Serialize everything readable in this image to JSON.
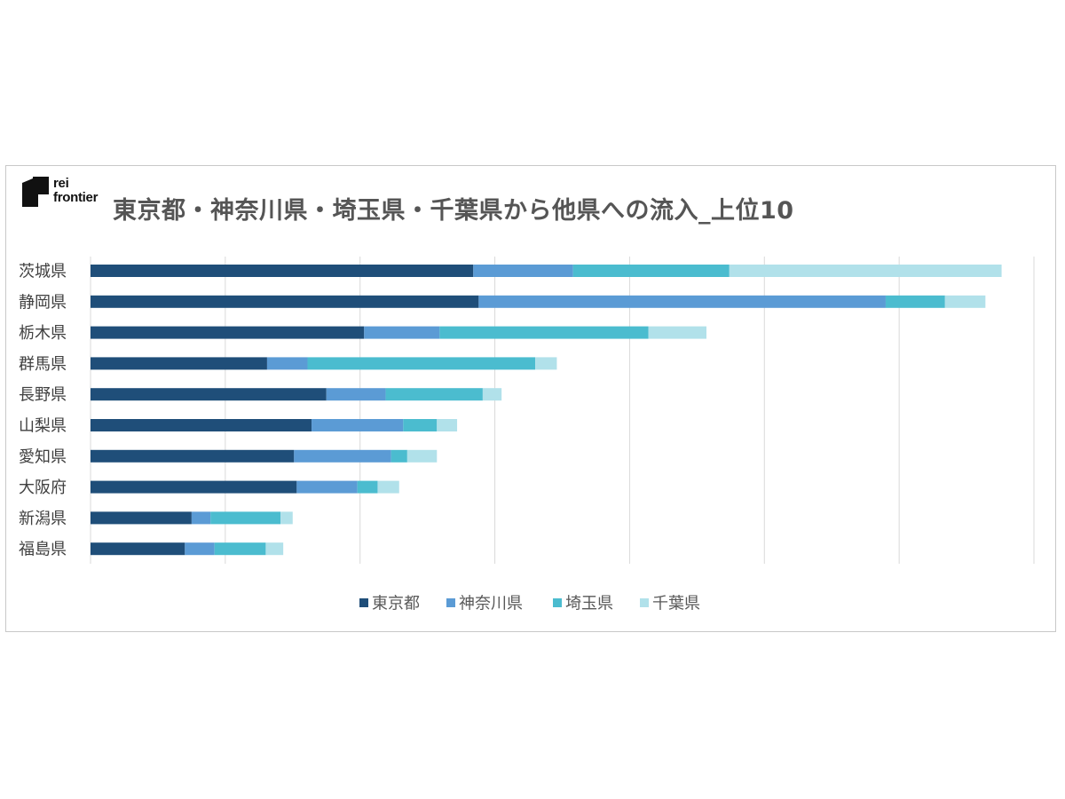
{
  "logo": {
    "line1": "rei",
    "line2": "frontier"
  },
  "chart_data": {
    "type": "bar",
    "orientation": "horizontal",
    "stacked": true,
    "title": "東京都・神奈川県・埼玉県・千葉県から他県への流入_上位10",
    "categories": [
      "茨城県",
      "静岡県",
      "栃木県",
      "群馬県",
      "長野県",
      "山梨県",
      "愛知県",
      "大阪府",
      "新潟県",
      "福島県"
    ],
    "series": [
      {
        "name": "東京都",
        "color": "#1f4e79",
        "values": [
          2840,
          2880,
          2030,
          1310,
          1750,
          1640,
          1510,
          1530,
          750,
          700
        ]
      },
      {
        "name": "神奈川県",
        "color": "#5b9bd5",
        "values": [
          740,
          3020,
          560,
          300,
          440,
          680,
          720,
          450,
          140,
          220
        ]
      },
      {
        "name": "埼玉県",
        "color": "#4bbccf",
        "values": [
          1160,
          440,
          1550,
          1690,
          720,
          250,
          120,
          150,
          520,
          380
        ]
      },
      {
        "name": "千葉県",
        "color": "#b1e1ea",
        "values": [
          2020,
          300,
          430,
          160,
          140,
          150,
          220,
          160,
          90,
          130
        ]
      }
    ],
    "xlim": [
      0,
      7000
    ],
    "x_gridline_step": 1000,
    "grid": true,
    "x_tick_labels_shown": false,
    "legend_position": "bottom"
  }
}
